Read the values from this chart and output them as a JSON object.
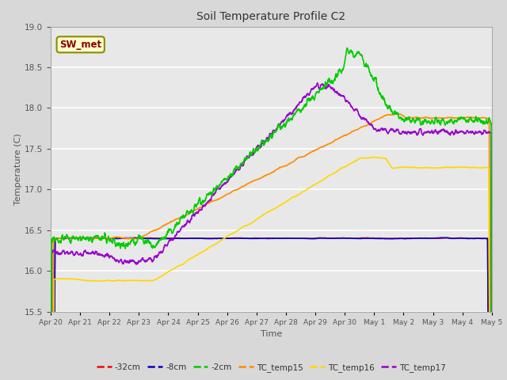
{
  "title": "Soil Temperature Profile C2",
  "xlabel": "Time",
  "ylabel": "Temperature (C)",
  "ylim": [
    15.5,
    19.0
  ],
  "annotation_text": "SW_met",
  "annotation_color": "#8B0000",
  "annotation_bg": "#FFFFCC",
  "annotation_border": "#8B8B00",
  "x_tick_labels": [
    "Apr 20",
    "Apr 21",
    "Apr 22",
    "Apr 23",
    "Apr 24",
    "Apr 25",
    "Apr 26",
    "Apr 27",
    "Apr 28",
    "Apr 29",
    "Apr 30",
    "May 1",
    "May 2",
    "May 3",
    "May 4",
    "May 5"
  ],
  "series": {
    "-32cm": {
      "color": "#FF0000",
      "linewidth": 1.2
    },
    "-8cm": {
      "color": "#0000CC",
      "linewidth": 1.2
    },
    "-2cm": {
      "color": "#00CC00",
      "linewidth": 1.2
    },
    "TC_temp15": {
      "color": "#FF8C00",
      "linewidth": 1.2
    },
    "TC_temp16": {
      "color": "#FFD700",
      "linewidth": 1.2
    },
    "TC_temp17": {
      "color": "#9900CC",
      "linewidth": 1.2
    }
  },
  "fig_bg": "#D8D8D8",
  "plot_bg": "#E8E8E8",
  "n_points": 2000,
  "end_day": 15
}
